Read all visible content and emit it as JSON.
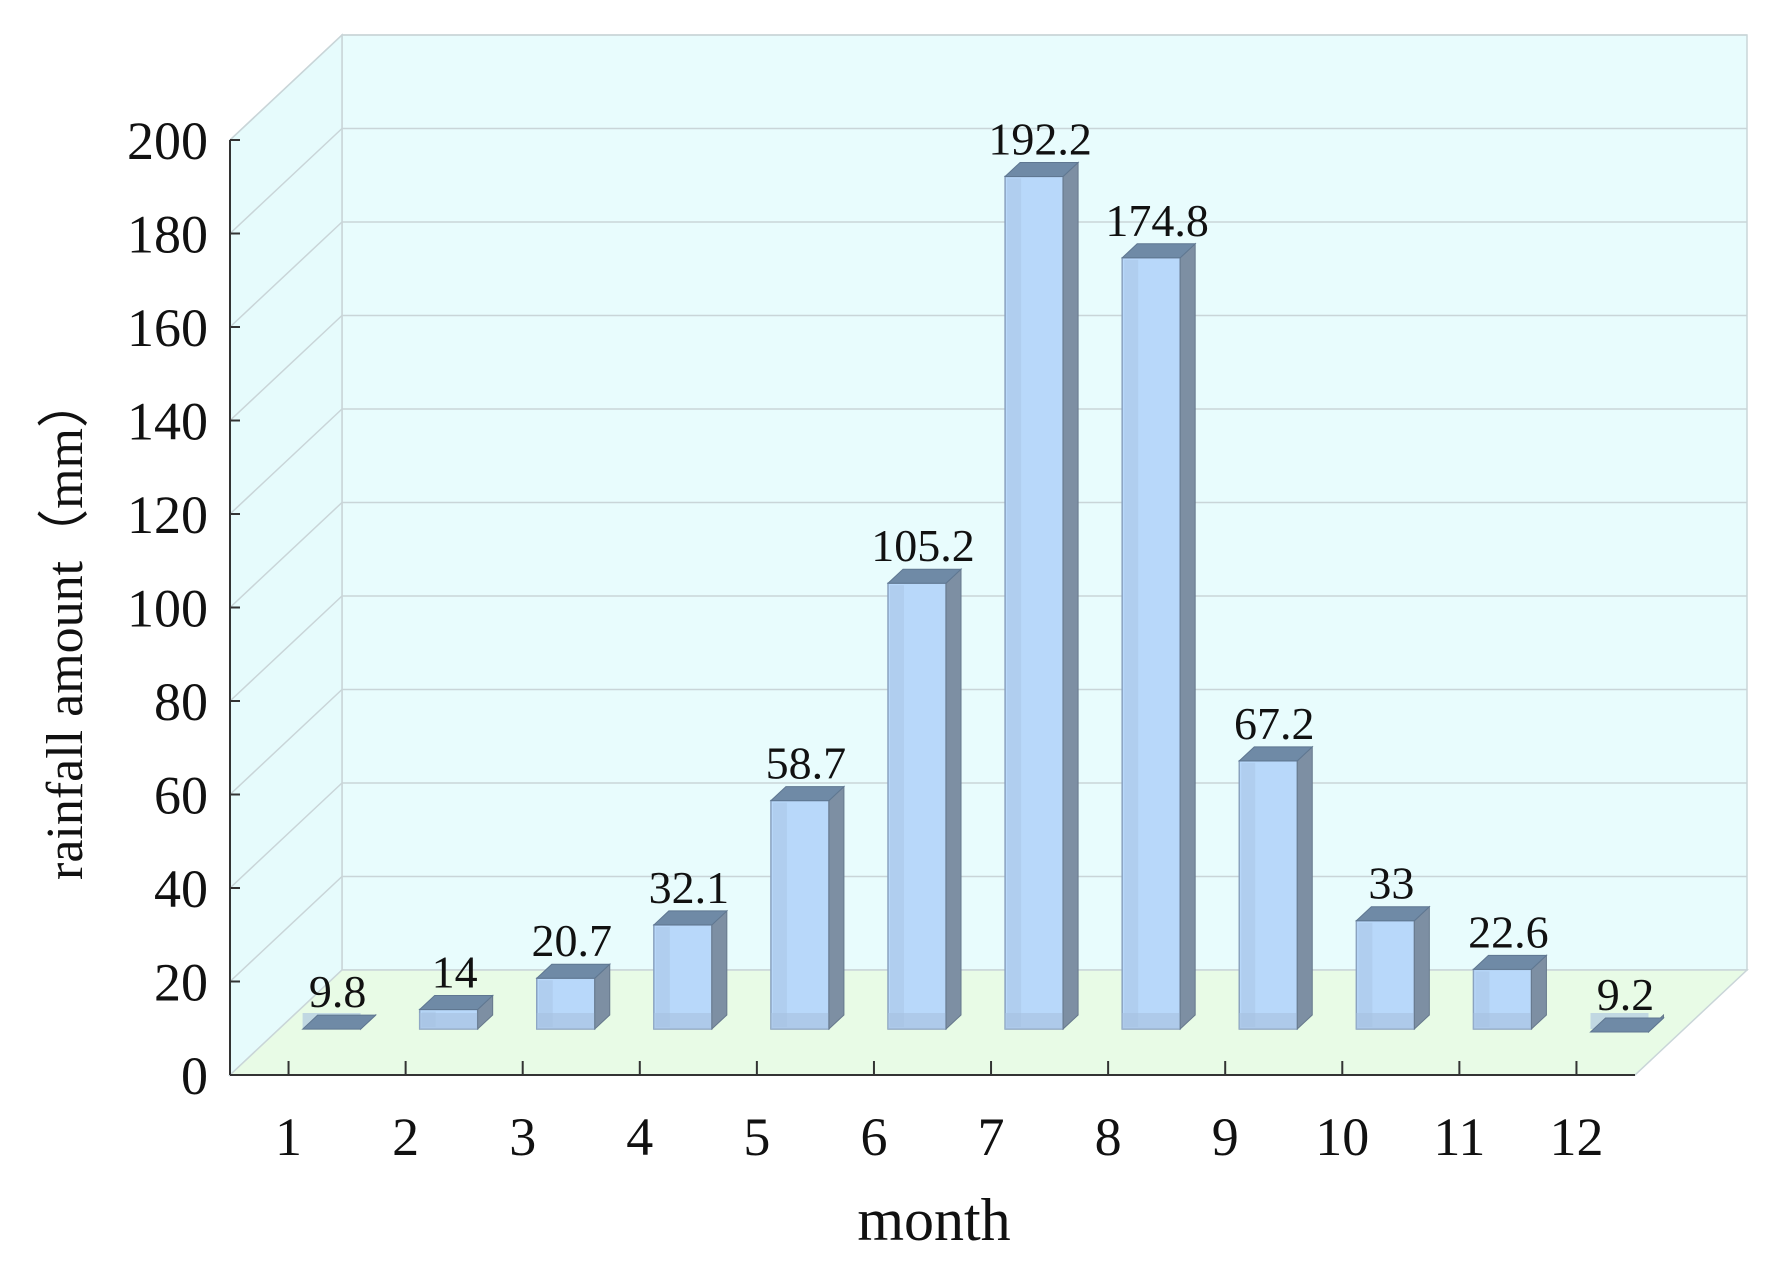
{
  "chart_data": {
    "type": "bar",
    "style": "3d",
    "xlabel": "month",
    "ylabel": "rainfall amount（mm）",
    "categories": [
      "1",
      "2",
      "3",
      "4",
      "5",
      "6",
      "7",
      "8",
      "9",
      "10",
      "11",
      "12"
    ],
    "values": [
      9.8,
      14,
      20.7,
      32.1,
      58.7,
      105.2,
      192.2,
      174.8,
      67.2,
      33,
      22.6,
      9.2
    ],
    "data_labels": [
      "9.8",
      "14",
      "20.7",
      "32.1",
      "58.7",
      "105.2",
      "192.2",
      "174.8",
      "67.2",
      "33",
      "22.6",
      "9.2"
    ],
    "ylim": [
      0,
      200
    ],
    "yticks": [
      "0",
      "20",
      "40",
      "60",
      "80",
      "100",
      "120",
      "140",
      "160",
      "180",
      "200"
    ],
    "grid": true,
    "legend": "none",
    "colors": {
      "bar_front": "#b8d8fa",
      "bar_edge": "#8aa2bf",
      "bar_side": "#7d8fa3",
      "bar_top": "#6f8aa6",
      "back_wall": "#e8fcfd",
      "side_wall": "#e6fbfc",
      "floor": "#e8fbe6",
      "grid": "#c9d5d8"
    }
  }
}
